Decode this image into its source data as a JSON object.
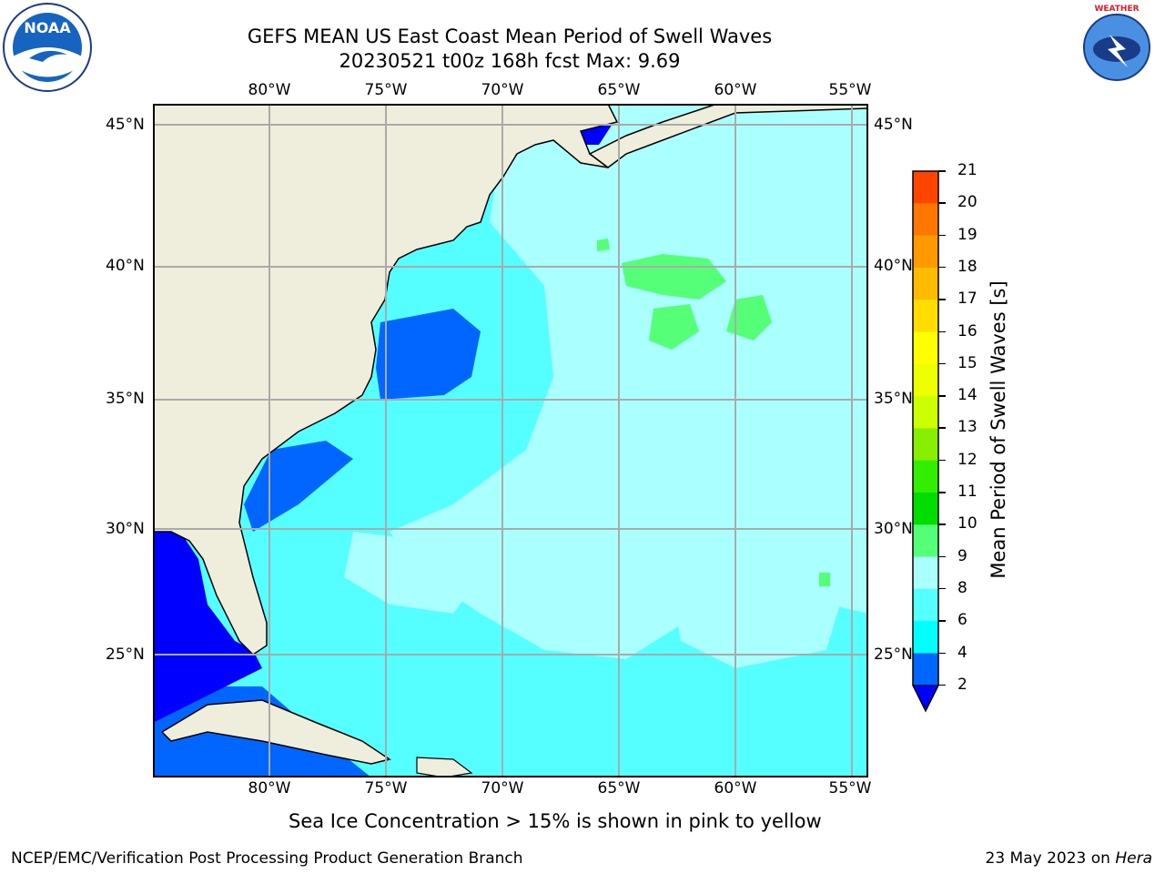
{
  "header": {
    "title_line1": "GEFS MEAN US East Coast Mean Period of Swell Waves",
    "title_line2": "20230521 t00z 168h fcst   Max: 9.69"
  },
  "map": {
    "lon_labels": [
      "80°W",
      "75°W",
      "70°W",
      "65°W",
      "60°W",
      "55°W"
    ],
    "lat_labels": [
      "45°N",
      "40°N",
      "35°N",
      "30°N",
      "25°N"
    ],
    "ocean_base_color": "#55ffff",
    "land_color": "#efeedc"
  },
  "colorbar": {
    "label": "Mean Period of Swell Waves [s]",
    "ticks": [
      "2",
      "4",
      "6",
      "8",
      "9",
      "10",
      "11",
      "12",
      "13",
      "14",
      "15",
      "16",
      "17",
      "18",
      "19",
      "20",
      "21"
    ],
    "colors": [
      "#0066ff",
      "#00ffff",
      "#55ffff",
      "#aaffff",
      "#55ff77",
      "#00dd00",
      "#33ee00",
      "#88ee00",
      "#ccff00",
      "#eeff00",
      "#ffff00",
      "#ffdd00",
      "#ffbb00",
      "#ff9900",
      "#ff7700",
      "#ff4400",
      "#ff0000"
    ],
    "under_color": "#0000ff"
  },
  "caption": "Sea Ice Concentration > 15% is shown in pink to yellow",
  "footer": {
    "left": "NCEP/EMC/Verification Post Processing Product Generation Branch",
    "right_date": "23 May 2023 on",
    "right_host": "Hera"
  },
  "logos": {
    "left_text": "NOAA",
    "right_text": "NATIONAL WEATHER SERVICE"
  }
}
